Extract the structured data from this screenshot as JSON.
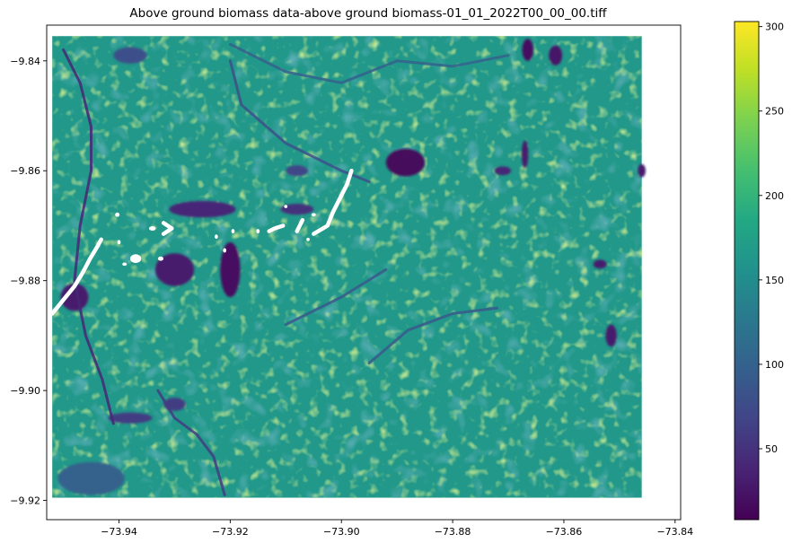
{
  "chart_data": {
    "type": "heatmap",
    "title": "Above ground biomass data-above ground biomass-01_01_2022T00_00_00.tiff",
    "xlabel": "",
    "ylabel": "",
    "xlim": [
      -73.953,
      -73.839
    ],
    "ylim": [
      -9.9235,
      -9.8335
    ],
    "raster_extent": {
      "x": [
        -73.952,
        -73.846
      ],
      "y": [
        -9.9195,
        -9.8355
      ]
    },
    "x_ticks": [
      -73.94,
      -73.92,
      -73.9,
      -73.88,
      -73.86,
      -73.84
    ],
    "x_tick_labels": [
      "−73.94",
      "−73.92",
      "−73.90",
      "−73.88",
      "−73.86",
      "−73.84"
    ],
    "y_ticks": [
      -9.84,
      -9.86,
      -9.88,
      -9.9,
      -9.92
    ],
    "y_tick_labels": [
      "−9.84",
      "−9.86",
      "−9.88",
      "−9.90",
      "−9.92"
    ],
    "colormap": "viridis",
    "colorbar": {
      "range": [
        8,
        303
      ],
      "ticks": [
        50,
        100,
        150,
        200,
        250,
        300
      ],
      "tick_labels": [
        "50",
        "100",
        "150",
        "200",
        "250",
        "300"
      ]
    },
    "background_value": 165,
    "low_biomass_patches": [
      {
        "lon": -73.93,
        "lat": -9.878,
        "rlon": 0.0035,
        "rlat": 0.003,
        "value": 30
      },
      {
        "lon": -73.92,
        "lat": -9.878,
        "rlon": 0.0018,
        "rlat": 0.005,
        "value": 20
      },
      {
        "lon": -73.8885,
        "lat": -9.8585,
        "rlon": 0.0035,
        "rlat": 0.0025,
        "value": 15
      },
      {
        "lon": -73.925,
        "lat": -9.867,
        "rlon": 0.006,
        "rlat": 0.0015,
        "value": 40
      },
      {
        "lon": -73.8665,
        "lat": -9.838,
        "rlon": 0.001,
        "rlat": 0.002,
        "value": 20
      },
      {
        "lon": -73.8615,
        "lat": -9.839,
        "rlon": 0.0012,
        "rlat": 0.0018,
        "value": 25
      },
      {
        "lon": -73.867,
        "lat": -9.857,
        "rlon": 0.0006,
        "rlat": 0.0025,
        "value": 30
      },
      {
        "lon": -73.8515,
        "lat": -9.89,
        "rlon": 0.001,
        "rlat": 0.002,
        "value": 30
      },
      {
        "lon": -73.8535,
        "lat": -9.877,
        "rlon": 0.0012,
        "rlat": 0.0008,
        "value": 30
      },
      {
        "lon": -73.846,
        "lat": -9.86,
        "rlon": 0.0007,
        "rlat": 0.0012,
        "value": 30
      },
      {
        "lon": -73.908,
        "lat": -9.867,
        "rlon": 0.003,
        "rlat": 0.001,
        "value": 50
      },
      {
        "lon": -73.948,
        "lat": -9.883,
        "rlon": 0.0025,
        "rlat": 0.0025,
        "value": 30
      },
      {
        "lon": -73.871,
        "lat": -9.86,
        "rlon": 0.0015,
        "rlat": 0.0008,
        "value": 40
      },
      {
        "lon": -73.938,
        "lat": -9.839,
        "rlon": 0.003,
        "rlat": 0.0015,
        "value": 80
      },
      {
        "lon": -73.938,
        "lat": -9.905,
        "rlon": 0.004,
        "rlat": 0.001,
        "value": 60
      },
      {
        "lon": -73.93,
        "lat": -9.9025,
        "rlon": 0.002,
        "rlat": 0.0012,
        "value": 60
      },
      {
        "lon": -73.908,
        "lat": -9.86,
        "rlon": 0.002,
        "rlat": 0.001,
        "value": 70
      },
      {
        "lon": -73.945,
        "lat": -9.916,
        "rlon": 0.006,
        "rlat": 0.003,
        "value": 100
      }
    ],
    "channels": [
      {
        "value": 40,
        "points": [
          [
            -73.95,
            -9.838
          ],
          [
            -73.947,
            -9.844
          ],
          [
            -73.945,
            -9.852
          ],
          [
            -73.945,
            -9.86
          ],
          [
            -73.947,
            -9.87
          ],
          [
            -73.948,
            -9.88
          ],
          [
            -73.946,
            -9.89
          ],
          [
            -73.943,
            -9.898
          ],
          [
            -73.941,
            -9.906
          ]
        ]
      },
      {
        "value": 60,
        "points": [
          [
            -73.933,
            -9.9
          ],
          [
            -73.93,
            -9.905
          ],
          [
            -73.926,
            -9.908
          ],
          [
            -73.923,
            -9.912
          ],
          [
            -73.921,
            -9.919
          ]
        ]
      },
      {
        "value": 100,
        "points": [
          [
            -73.92,
            -9.837
          ],
          [
            -73.91,
            -9.842
          ],
          [
            -73.9,
            -9.844
          ],
          [
            -73.89,
            -9.84
          ],
          [
            -73.88,
            -9.841
          ],
          [
            -73.87,
            -9.839
          ]
        ]
      },
      {
        "value": 90,
        "points": [
          [
            -73.895,
            -9.895
          ],
          [
            -73.888,
            -9.889
          ],
          [
            -73.88,
            -9.886
          ],
          [
            -73.872,
            -9.885
          ]
        ]
      },
      {
        "value": 90,
        "points": [
          [
            -73.91,
            -9.888
          ],
          [
            -73.9,
            -9.883
          ],
          [
            -73.892,
            -9.878
          ]
        ]
      },
      {
        "value": 80,
        "points": [
          [
            -73.92,
            -9.84
          ],
          [
            -73.918,
            -9.848
          ],
          [
            -73.91,
            -9.855
          ],
          [
            -73.9,
            -9.86
          ],
          [
            -73.895,
            -9.862
          ]
        ]
      }
    ],
    "no_data_marks": [
      {
        "shape": "line",
        "points": [
          [
            -73.952,
            -9.886
          ],
          [
            -73.95,
            -9.8835
          ],
          [
            -73.948,
            -9.881
          ],
          [
            -73.9465,
            -9.8785
          ],
          [
            -73.9452,
            -9.876
          ],
          [
            -73.944,
            -9.874
          ],
          [
            -73.9432,
            -9.8725
          ]
        ]
      },
      {
        "shape": "line",
        "points": [
          [
            -73.905,
            -9.8715
          ],
          [
            -73.9025,
            -9.87
          ],
          [
            -73.9015,
            -9.8675
          ],
          [
            -73.9,
            -9.8645
          ],
          [
            -73.899,
            -9.8625
          ],
          [
            -73.8982,
            -9.86
          ]
        ]
      },
      {
        "shape": "line",
        "points": [
          [
            -73.932,
            -9.8715
          ],
          [
            -73.9305,
            -9.8705
          ],
          [
            -73.932,
            -9.8695
          ]
        ]
      },
      {
        "shape": "line",
        "points": [
          [
            -73.913,
            -9.871
          ],
          [
            -73.912,
            -9.8705
          ],
          [
            -73.9105,
            -9.87
          ]
        ]
      },
      {
        "shape": "line",
        "points": [
          [
            -73.908,
            -9.871
          ],
          [
            -73.9075,
            -9.87
          ],
          [
            -73.907,
            -9.869
          ]
        ]
      },
      {
        "shape": "blob",
        "lon": -73.937,
        "lat": -9.876,
        "rlon": 0.001,
        "rlat": 0.0008
      },
      {
        "shape": "blob",
        "lon": -73.934,
        "lat": -9.8705,
        "rlon": 0.0006,
        "rlat": 0.0004
      },
      {
        "shape": "blob",
        "lon": -73.9325,
        "lat": -9.876,
        "rlon": 0.0005,
        "rlat": 0.0004
      },
      {
        "shape": "blob",
        "lon": -73.939,
        "lat": -9.877,
        "rlon": 0.0004,
        "rlat": 0.0003
      },
      {
        "shape": "blob",
        "lon": -73.9403,
        "lat": -9.868,
        "rlon": 0.0004,
        "rlat": 0.0004
      },
      {
        "shape": "blob",
        "lon": -73.94,
        "lat": -9.873,
        "rlon": 0.0003,
        "rlat": 0.0004
      },
      {
        "shape": "blob",
        "lon": -73.9225,
        "lat": -9.872,
        "rlon": 0.0003,
        "rlat": 0.0004
      },
      {
        "shape": "blob",
        "lon": -73.9195,
        "lat": -9.871,
        "rlon": 0.0003,
        "rlat": 0.0004
      },
      {
        "shape": "blob",
        "lon": -73.915,
        "lat": -9.871,
        "rlon": 0.0003,
        "rlat": 0.0004
      },
      {
        "shape": "blob",
        "lon": -73.921,
        "lat": -9.8745,
        "rlon": 0.0003,
        "rlat": 0.0004
      },
      {
        "shape": "blob",
        "lon": -73.906,
        "lat": -9.8725,
        "rlon": 0.0003,
        "rlat": 0.0003
      },
      {
        "shape": "blob",
        "lon": -73.91,
        "lat": -9.8665,
        "rlon": 0.0003,
        "rlat": 0.0003
      },
      {
        "shape": "blob",
        "lon": -73.905,
        "lat": -9.868,
        "rlon": 0.0004,
        "rlat": 0.0003
      }
    ]
  }
}
